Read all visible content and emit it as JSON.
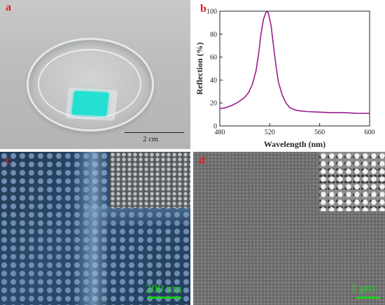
{
  "panels": {
    "a": {
      "label": "a",
      "scalebar_text": "2 cm"
    },
    "b": {
      "label": "b"
    },
    "c": {
      "label": "c",
      "scalebar_text": "200 nm"
    },
    "d": {
      "label": "d",
      "scalebar_text": "1 μm"
    }
  },
  "colors": {
    "panel_label": "#e31b23",
    "curve": "#9b1a8c",
    "scalebar_sem": "#1dd01d",
    "film": "#23e0d2"
  },
  "chart_data": {
    "type": "line",
    "title": "",
    "xlabel": "Wavelength (nm)",
    "ylabel": "Reflection (%)",
    "xlim": [
      480,
      600
    ],
    "ylim": [
      0,
      100
    ],
    "xticks": [
      480,
      520,
      560,
      600
    ],
    "yticks": [
      0,
      20,
      40,
      60,
      80,
      100
    ],
    "grid": false,
    "series": [
      {
        "x": [
          480,
          485,
          490,
          495,
          500,
          503,
          506,
          509,
          511,
          513,
          515,
          517,
          518,
          519,
          521,
          523,
          525,
          527,
          530,
          533,
          536,
          540,
          545,
          550,
          560,
          570,
          580,
          590,
          600
        ],
        "y": [
          15,
          16,
          18,
          21,
          25,
          29,
          36,
          48,
          62,
          80,
          93,
          99,
          100,
          98,
          88,
          70,
          52,
          38,
          27,
          20,
          16,
          14,
          13,
          12.5,
          12,
          11.5,
          11.5,
          11,
          11
        ]
      }
    ]
  }
}
